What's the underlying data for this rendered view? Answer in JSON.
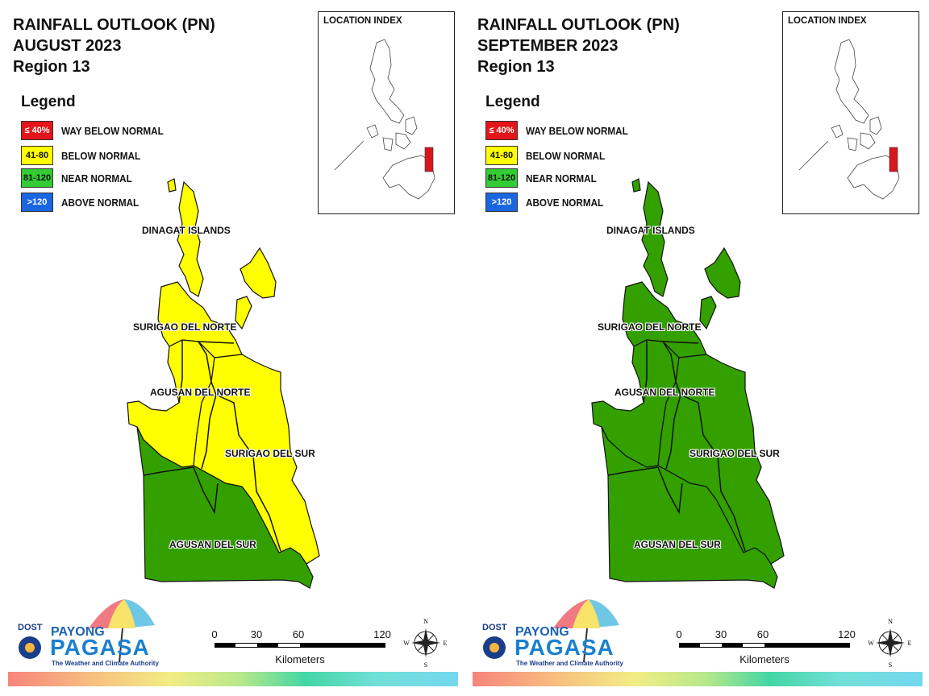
{
  "colors": {
    "way_below": "#e3151a",
    "below": "#ffff00",
    "near": "#33a000",
    "above": "#1660de",
    "outline": "#111111",
    "highlight": "#d8161b"
  },
  "legend": {
    "title": "Legend",
    "items": [
      {
        "code": "≤ 40%",
        "label": "WAY BELOW NORMAL",
        "color": "#e3151a",
        "text_color": "#ffffff"
      },
      {
        "code": "41-80",
        "label": "BELOW NORMAL",
        "color": "#ffff00",
        "text_color": "#111111"
      },
      {
        "code": "81-120",
        "label": "NEAR NORMAL",
        "color": "#33cc33",
        "text_color": "#111111"
      },
      {
        "code": ">120",
        "label": "ABOVE NORMAL",
        "color": "#1a66e0",
        "text_color": "#ffffff"
      }
    ]
  },
  "location_index": {
    "title": "LOCATION INDEX"
  },
  "provinces": {
    "dinagat": "DINAGAT ISLANDS",
    "surigao_norte": "SURIGAO DEL NORTE",
    "agusan_norte": "AGUSAN DEL NORTE",
    "surigao_sur": "SURIGAO DEL SUR",
    "agusan_sur": "AGUSAN DEL SUR"
  },
  "scale": {
    "ticks": [
      "0",
      "30",
      "60",
      "120"
    ],
    "units": "Kilometers"
  },
  "compass": {
    "n": "N",
    "s": "S",
    "e": "E",
    "w": "W"
  },
  "logo": {
    "dost": "DOST",
    "payong": "PAYONG",
    "pagasa": "PAGASA",
    "tagline": "The Weather and Climate Authority"
  },
  "maps": [
    {
      "title_line1": "RAINFALL OUTLOOK (PN)",
      "title_line2": "AUGUST 2023",
      "title_line3": "Region 13",
      "categories": {
        "dinagat": "BELOW NORMAL",
        "surigao_norte": "BELOW NORMAL",
        "agusan_norte_east": "BELOW NORMAL",
        "agusan_norte_west_strip": "NEAR NORMAL",
        "surigao_sur": "BELOW NORMAL",
        "agusan_sur": "NEAR NORMAL"
      }
    },
    {
      "title_line1": "RAINFALL OUTLOOK (PN)",
      "title_line2": "SEPTEMBER 2023",
      "title_line3": "Region 13",
      "categories": {
        "dinagat": "NEAR NORMAL",
        "surigao_norte": "NEAR NORMAL",
        "agusan_norte_east": "NEAR NORMAL",
        "agusan_norte_west_strip": "NEAR NORMAL",
        "surigao_sur": "NEAR NORMAL",
        "agusan_sur": "NEAR NORMAL"
      }
    }
  ]
}
